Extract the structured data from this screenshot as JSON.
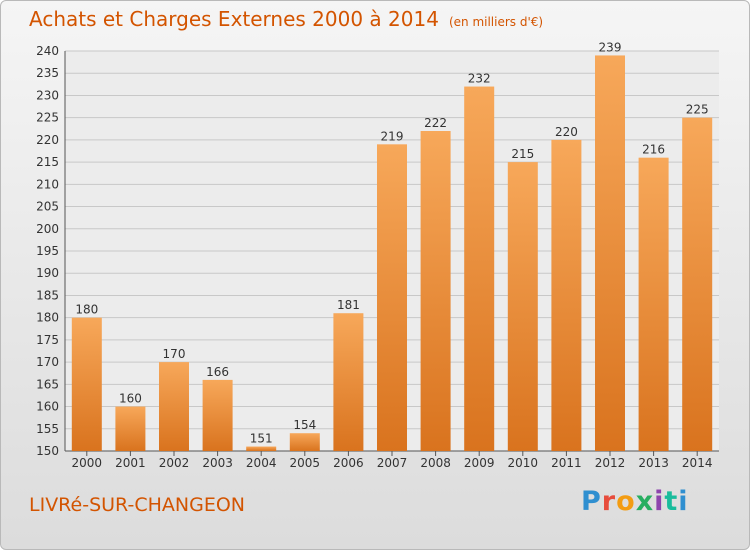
{
  "header": {
    "title": "Achats et Charges Externes 2000 à 2014",
    "subtitle": "(en milliers d'€)"
  },
  "footer": {
    "commune": "LIVRé-SUR-CHANGEON",
    "logo_text": "Proxiti"
  },
  "colors": {
    "title": "#d35400",
    "bar_light": "#f7a85a",
    "bar_dark": "#d9731e",
    "grid": "#c8c8c8"
  },
  "chart_data": {
    "type": "bar",
    "title": "Achats et Charges Externes 2000 à 2014",
    "subtitle": "(en milliers d'€)",
    "xlabel": "",
    "ylabel": "",
    "categories": [
      "2000",
      "2001",
      "2002",
      "2003",
      "2004",
      "2005",
      "2006",
      "2007",
      "2008",
      "2009",
      "2010",
      "2011",
      "2012",
      "2013",
      "2014"
    ],
    "values": [
      180,
      160,
      170,
      166,
      151,
      154,
      181,
      219,
      222,
      232,
      215,
      220,
      239,
      216,
      225
    ],
    "ylim": [
      150,
      240
    ],
    "ytick_step": 5,
    "grid": true
  }
}
